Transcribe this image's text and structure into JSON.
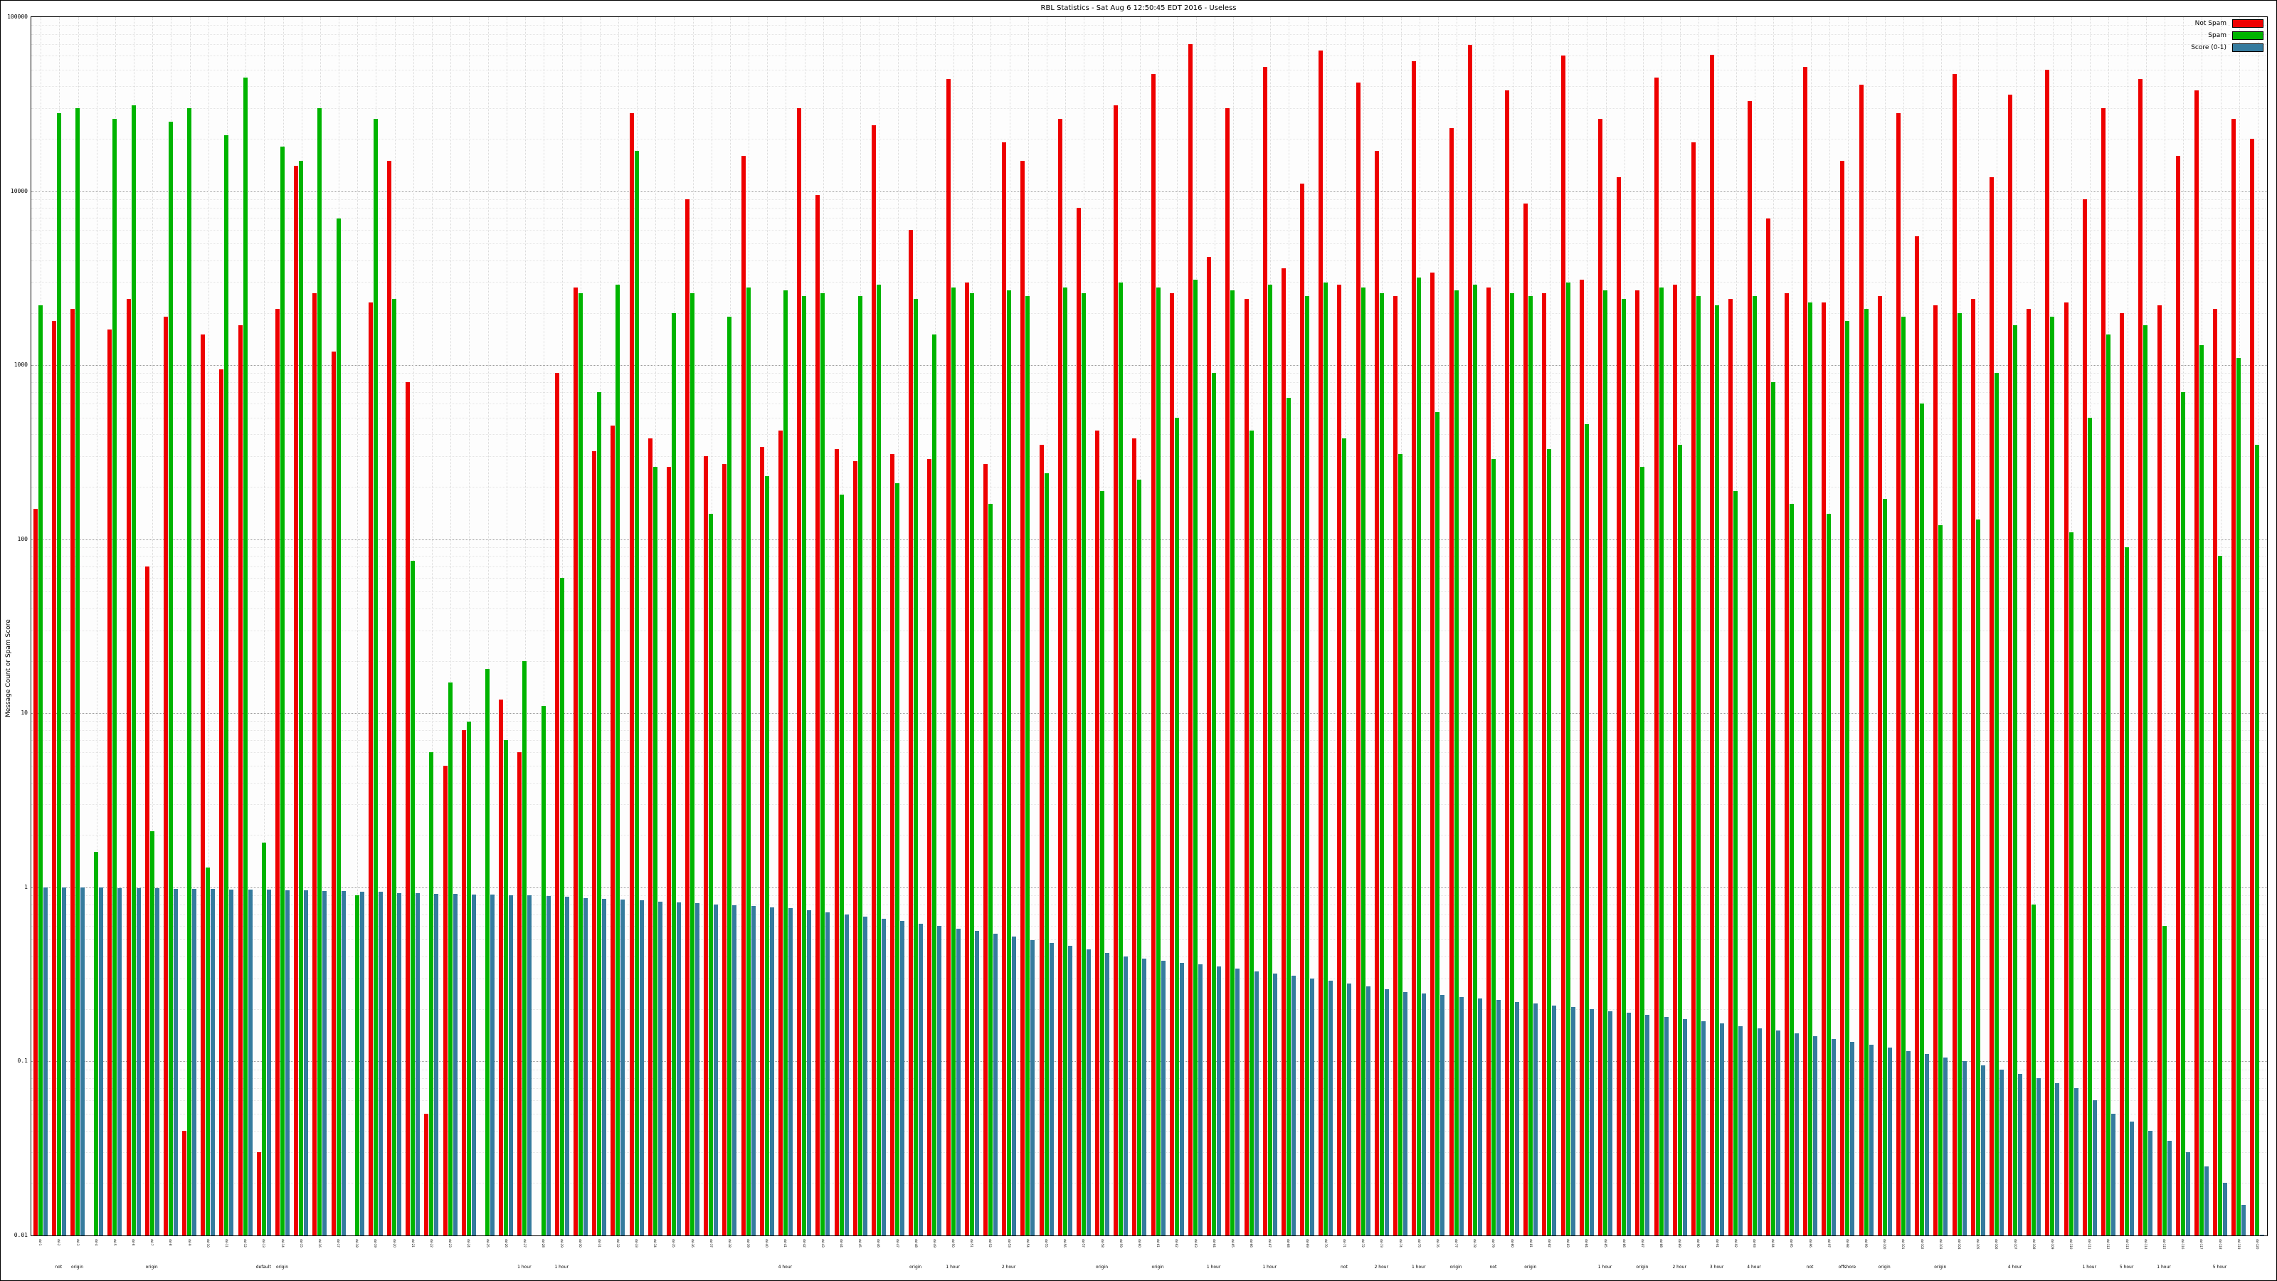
{
  "title": "RBL Statistics - Sat Aug 6 12:50:45 EDT 2016 - Useless",
  "legend": [
    {
      "label": "Not Spam",
      "color": "#ee0000"
    },
    {
      "label": "Spam",
      "color": "#00b400"
    },
    {
      "label": "Score (0-1)",
      "color": "#357b9e"
    }
  ],
  "y_axis": {
    "label": "Message Count or Spam Score",
    "ticks": [
      "100000",
      "10000",
      "1000",
      "100",
      "10",
      "1",
      "0.1",
      "0.01"
    ]
  },
  "x_axis": {
    "group_labels": [
      {
        "at": 1,
        "text": "not"
      },
      {
        "at": 2,
        "text": "origin"
      },
      {
        "at": 6,
        "text": "origin"
      },
      {
        "at": 12,
        "text": "default"
      },
      {
        "at": 13,
        "text": "origin"
      },
      {
        "at": 26,
        "text": "1 hour"
      },
      {
        "at": 28,
        "text": "1 hour"
      },
      {
        "at": 40,
        "text": "4 hour"
      },
      {
        "at": 47,
        "text": "origin"
      },
      {
        "at": 49,
        "text": "1 hour"
      },
      {
        "at": 52,
        "text": "2 hour"
      },
      {
        "at": 57,
        "text": "origin"
      },
      {
        "at": 60,
        "text": "origin"
      },
      {
        "at": 63,
        "text": "1 hour"
      },
      {
        "at": 66,
        "text": "1 hour"
      },
      {
        "at": 70,
        "text": "not"
      },
      {
        "at": 72,
        "text": "2 hour"
      },
      {
        "at": 74,
        "text": "1 hour"
      },
      {
        "at": 76,
        "text": "origin"
      },
      {
        "at": 78,
        "text": "not"
      },
      {
        "at": 80,
        "text": "origin"
      },
      {
        "at": 84,
        "text": "1 hour"
      },
      {
        "at": 86,
        "text": "origin"
      },
      {
        "at": 88,
        "text": "2 hour"
      },
      {
        "at": 90,
        "text": "3 hour"
      },
      {
        "at": 92,
        "text": "4 hour"
      },
      {
        "at": 95,
        "text": "not"
      },
      {
        "at": 97,
        "text": "offshore"
      },
      {
        "at": 99,
        "text": "origin"
      },
      {
        "at": 102,
        "text": "origin"
      },
      {
        "at": 106,
        "text": "4 hour"
      },
      {
        "at": 110,
        "text": "1 hour"
      },
      {
        "at": 112,
        "text": "5 hour"
      },
      {
        "at": 114,
        "text": "1 hour"
      },
      {
        "at": 117,
        "text": "5 hour"
      }
    ]
  },
  "chart_data": {
    "type": "bar",
    "title": "RBL Statistics - Sat Aug 6 12:50:45 EDT 2016 - Useless",
    "ylabel": "Message Count or Spam Score",
    "xlabel": "",
    "log_scale": true,
    "ylim": [
      0.01,
      100000
    ],
    "grid": true,
    "legend_position": "top-right",
    "categories": [
      "rbl-1",
      "rbl-2",
      "rbl-3",
      "rbl-4",
      "rbl-5",
      "rbl-6",
      "rbl-7",
      "rbl-8",
      "rbl-9",
      "rbl-10",
      "rbl-11",
      "rbl-12",
      "rbl-13",
      "rbl-14",
      "rbl-15",
      "rbl-16",
      "rbl-17",
      "rbl-18",
      "rbl-19",
      "rbl-20",
      "rbl-21",
      "rbl-22",
      "rbl-23",
      "rbl-24",
      "rbl-25",
      "rbl-26",
      "rbl-27",
      "rbl-28",
      "rbl-29",
      "rbl-30",
      "rbl-31",
      "rbl-32",
      "rbl-33",
      "rbl-34",
      "rbl-35",
      "rbl-36",
      "rbl-37",
      "rbl-38",
      "rbl-39",
      "rbl-40",
      "rbl-41",
      "rbl-42",
      "rbl-43",
      "rbl-44",
      "rbl-45",
      "rbl-46",
      "rbl-47",
      "rbl-48",
      "rbl-49",
      "rbl-50",
      "rbl-51",
      "rbl-52",
      "rbl-53",
      "rbl-54",
      "rbl-55",
      "rbl-56",
      "rbl-57",
      "rbl-58",
      "rbl-59",
      "rbl-60",
      "rbl-61",
      "rbl-62",
      "rbl-63",
      "rbl-64",
      "rbl-65",
      "rbl-66",
      "rbl-67",
      "rbl-68",
      "rbl-69",
      "rbl-70",
      "rbl-71",
      "rbl-72",
      "rbl-73",
      "rbl-74",
      "rbl-75",
      "rbl-76",
      "rbl-77",
      "rbl-78",
      "rbl-79",
      "rbl-80",
      "rbl-81",
      "rbl-82",
      "rbl-83",
      "rbl-84",
      "rbl-85",
      "rbl-86",
      "rbl-87",
      "rbl-88",
      "rbl-89",
      "rbl-90",
      "rbl-91",
      "rbl-92",
      "rbl-93",
      "rbl-94",
      "rbl-95",
      "rbl-96",
      "rbl-97",
      "rbl-98",
      "rbl-99",
      "rbl-100",
      "rbl-101",
      "rbl-102",
      "rbl-103",
      "rbl-104",
      "rbl-105",
      "rbl-106",
      "rbl-107",
      "rbl-108",
      "rbl-109",
      "rbl-110",
      "rbl-111",
      "rbl-112",
      "rbl-113",
      "rbl-114",
      "rbl-115",
      "rbl-116",
      "rbl-117",
      "rbl-118",
      "rbl-119",
      "rbl-120"
    ],
    "series": [
      {
        "name": "Not Spam",
        "color": "#ee0000",
        "values": [
          150,
          1800,
          2100,
          0,
          1600,
          2400,
          70,
          1900,
          0.04,
          1500,
          950,
          1700,
          0.03,
          2100,
          14000,
          2600,
          1200,
          0,
          2300,
          15000,
          800,
          0.05,
          5,
          8,
          0,
          12,
          6,
          0,
          900,
          2800,
          320,
          450,
          28000,
          380,
          260,
          9000,
          300,
          270,
          16000,
          340,
          420,
          30000,
          9500,
          330,
          280,
          24000,
          310,
          6000,
          290,
          44000,
          3000,
          270,
          19000,
          15000,
          350,
          26000,
          8000,
          420,
          31000,
          380,
          47000,
          2600,
          70000,
          4200,
          30000,
          2400,
          52000,
          3600,
          11000,
          64000,
          2900,
          42000,
          17000,
          2500,
          56000,
          3400,
          23000,
          69000,
          2800,
          38000,
          8500,
          2600,
          60000,
          3100,
          26000,
          12000,
          2700,
          45000,
          2900,
          19000,
          61000,
          2400,
          33000,
          7000,
          2600,
          52000,
          2300,
          15000,
          41000,
          2500,
          28000,
          5500,
          2200,
          47000,
          2400,
          12000,
          36000,
          2100,
          50000,
          2300,
          9000,
          30000,
          2000,
          44000,
          2200,
          16000,
          38000,
          2100,
          26000,
          20000
        ]
      },
      {
        "name": "Spam",
        "color": "#00b400",
        "values": [
          2200,
          28000,
          30000,
          1.6,
          26000,
          31000,
          2.1,
          25000,
          30000,
          1.3,
          21000,
          45000,
          1.8,
          18000,
          15000,
          30000,
          7000,
          0.9,
          26000,
          2400,
          75,
          6,
          15,
          9,
          18,
          7,
          20,
          11,
          60,
          2600,
          700,
          2900,
          17000,
          260,
          2000,
          2600,
          140,
          1900,
          2800,
          230,
          2700,
          2500,
          2600,
          180,
          2500,
          2900,
          210,
          2400,
          1500,
          2800,
          2600,
          160,
          2700,
          2500,
          240,
          2800,
          2600,
          190,
          3000,
          220,
          2800,
          500,
          3100,
          900,
          2700,
          420,
          2900,
          650,
          2500,
          3000,
          380,
          2800,
          2600,
          310,
          3200,
          540,
          2700,
          2900,
          290,
          2600,
          2500,
          330,
          3000,
          460,
          2700,
          2400,
          260,
          2800,
          350,
          2500,
          2200,
          190,
          2500,
          800,
          160,
          2300,
          140,
          1800,
          2100,
          170,
          1900,
          600,
          120,
          2000,
          130,
          900,
          1700,
          0.8,
          1900,
          110,
          500,
          1500,
          90,
          1700,
          0.6,
          700,
          1300,
          80,
          1100,
          350
        ]
      },
      {
        "name": "Score (0-1)",
        "color": "#357b9e",
        "values": [
          1.0,
          1.0,
          1.0,
          1.0,
          0.99,
          0.99,
          0.99,
          0.98,
          0.98,
          0.98,
          0.97,
          0.97,
          0.97,
          0.96,
          0.96,
          0.95,
          0.95,
          0.94,
          0.94,
          0.93,
          0.93,
          0.92,
          0.92,
          0.91,
          0.91,
          0.9,
          0.9,
          0.89,
          0.88,
          0.87,
          0.86,
          0.85,
          0.84,
          0.83,
          0.82,
          0.81,
          0.8,
          0.79,
          0.78,
          0.77,
          0.76,
          0.74,
          0.72,
          0.7,
          0.68,
          0.66,
          0.64,
          0.62,
          0.6,
          0.58,
          0.56,
          0.54,
          0.52,
          0.5,
          0.48,
          0.46,
          0.44,
          0.42,
          0.4,
          0.39,
          0.38,
          0.37,
          0.36,
          0.35,
          0.34,
          0.33,
          0.32,
          0.31,
          0.3,
          0.29,
          0.28,
          0.27,
          0.26,
          0.25,
          0.245,
          0.24,
          0.235,
          0.23,
          0.225,
          0.22,
          0.215,
          0.21,
          0.205,
          0.2,
          0.195,
          0.19,
          0.185,
          0.18,
          0.175,
          0.17,
          0.165,
          0.16,
          0.155,
          0.15,
          0.145,
          0.14,
          0.135,
          0.13,
          0.125,
          0.12,
          0.115,
          0.11,
          0.105,
          0.1,
          0.095,
          0.09,
          0.085,
          0.08,
          0.075,
          0.07,
          0.06,
          0.05,
          0.045,
          0.04,
          0.035,
          0.03,
          0.025,
          0.02,
          0.015,
          0.01
        ]
      }
    ]
  }
}
